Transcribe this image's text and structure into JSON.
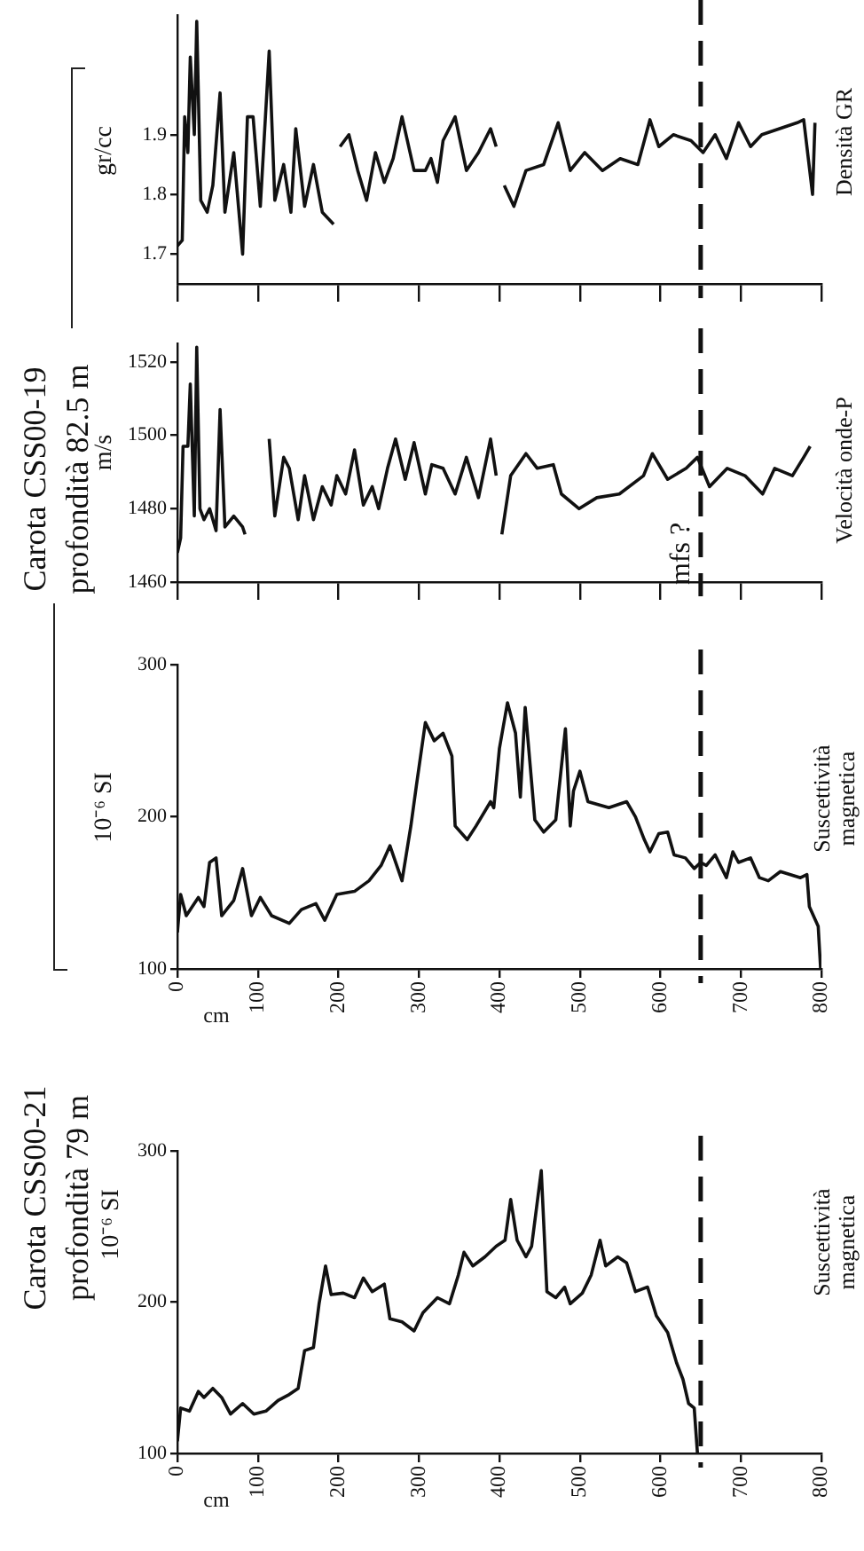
{
  "chart_data": [
    {
      "type": "line",
      "ylabel": "gr/cc",
      "annotations": [
        "Densità GR"
      ],
      "xlim": [
        0,
        800
      ],
      "xticks": [
        0,
        100,
        200,
        300,
        400,
        500,
        600,
        700,
        800
      ],
      "ylim": [
        1.65,
        2.1
      ],
      "yticks": [
        1.7,
        1.8,
        1.9
      ],
      "tick_labels": "y",
      "grid": false,
      "line_style": "solid",
      "x": [
        0,
        6,
        9,
        13,
        16,
        21,
        24,
        29,
        37,
        44,
        53,
        59,
        70,
        81,
        87,
        94,
        103,
        114,
        121,
        132,
        141,
        147,
        158,
        169,
        180,
        194,
        198,
        202,
        213,
        224,
        235,
        246,
        257,
        268,
        279,
        294,
        308,
        315,
        323,
        330,
        345,
        359,
        374,
        389,
        396,
        401,
        406,
        418,
        433,
        455,
        473,
        488,
        506,
        528,
        550,
        572,
        587,
        598,
        616,
        638,
        653,
        668,
        682,
        697,
        712,
        726,
        748,
        770,
        778,
        789,
        792
      ],
      "series": [
        {
          "color": "#111111",
          "values": [
            1.714,
            1.723,
            1.93,
            1.87,
            2.03,
            1.9,
            2.09,
            1.79,
            1.77,
            1.815,
            1.97,
            1.77,
            1.87,
            1.7,
            1.93,
            1.93,
            1.78,
            2.04,
            1.79,
            1.85,
            1.77,
            1.91,
            1.78,
            1.85,
            1.77,
            1.75,
            null,
            1.88,
            1.9,
            1.84,
            1.79,
            1.87,
            1.82,
            1.86,
            1.93,
            1.84,
            1.84,
            1.86,
            1.82,
            1.89,
            1.93,
            1.84,
            1.87,
            1.91,
            1.88,
            null,
            1.815,
            1.78,
            1.84,
            1.85,
            1.92,
            1.84,
            1.87,
            1.84,
            1.86,
            1.85,
            1.925,
            1.88,
            1.9,
            1.89,
            1.87,
            1.9,
            1.86,
            1.92,
            1.88,
            1.9,
            1.91,
            1.92,
            1.925,
            1.8,
            1.92
          ]
        }
      ],
      "ref_lines": [
        {
          "axis": "x",
          "value": 650,
          "line_style": "dashed"
        }
      ]
    },
    {
      "type": "line",
      "title": "Carota CSS00-19",
      "subtitle": "profondità 82.5 m",
      "ylabel": "m/s",
      "annotations": [
        "Velocità onde-P"
      ],
      "xlim": [
        0,
        800
      ],
      "xticks": [
        0,
        100,
        200,
        300,
        400,
        500,
        600,
        700,
        800
      ],
      "ylim": [
        1460,
        1525
      ],
      "yticks": [
        1460,
        1480,
        1500,
        1520
      ],
      "tick_labels": "y",
      "grid": false,
      "line_style": "solid",
      "x": [
        0,
        4,
        7,
        13,
        16,
        21,
        24,
        28,
        33,
        40,
        48,
        53,
        59,
        70,
        81,
        84,
        100,
        114,
        121,
        132,
        139,
        150,
        158,
        169,
        180,
        191,
        198,
        209,
        220,
        231,
        242,
        250,
        261,
        271,
        283,
        294,
        308,
        316,
        330,
        345,
        359,
        374,
        389,
        396,
        400,
        403,
        414,
        433,
        447,
        467,
        477,
        499,
        521,
        549,
        579,
        590,
        609,
        632,
        646,
        661,
        683,
        705,
        727,
        742,
        764,
        778,
        786
      ],
      "series": [
        {
          "color": "#111111",
          "values": [
            1468,
            1472,
            1497,
            1497,
            1514,
            1478,
            1524,
            1480,
            1477,
            1480,
            1474,
            1507,
            1475,
            1478,
            1475,
            1473,
            null,
            1499,
            1478,
            1494,
            1491,
            1477,
            1489,
            1477,
            1486,
            1481,
            1489,
            1484,
            1496,
            1481,
            1486,
            1480,
            1491,
            1499,
            1488,
            1498,
            1484,
            1492,
            1491,
            1484,
            1494,
            1483,
            1499,
            1489,
            null,
            1473,
            1489,
            1495,
            1491,
            1492,
            1484,
            1480,
            1483,
            1484,
            1489,
            1495,
            1488,
            1491,
            1494,
            1486,
            1491,
            1489,
            1484,
            1491,
            1489,
            1494,
            1497
          ]
        }
      ],
      "ref_lines": [
        {
          "axis": "x",
          "value": 650,
          "line_style": "dashed"
        }
      ]
    },
    {
      "type": "line",
      "ylabel": "10⁻⁶ SI",
      "xlabel": "cm",
      "annotations": [
        "Suscettività magnetica"
      ],
      "xlim": [
        0,
        800
      ],
      "xticks": [
        0,
        100,
        200,
        300,
        400,
        500,
        600,
        700,
        800
      ],
      "ylim": [
        100,
        300
      ],
      "yticks": [
        100,
        200,
        300
      ],
      "grid": false,
      "line_style": "solid",
      "x": [
        0,
        4,
        11,
        26,
        33,
        40,
        48,
        55,
        70,
        81,
        92,
        103,
        117,
        139,
        154,
        172,
        183,
        198,
        220,
        238,
        253,
        264,
        279,
        290,
        297,
        308,
        319,
        330,
        341,
        345,
        360,
        371,
        389,
        393,
        400,
        410,
        420,
        426,
        432,
        444,
        455,
        470,
        482,
        488,
        492,
        500,
        510,
        536,
        558,
        569,
        580,
        587,
        598,
        609,
        617,
        631,
        642,
        650,
        657,
        668,
        682,
        690,
        697,
        712,
        723,
        734,
        749,
        774,
        782,
        785,
        796,
        799
      ],
      "series": [
        {
          "color": "#111111",
          "values": [
            124,
            149,
            135,
            147,
            141,
            170,
            173,
            135,
            145,
            166,
            135,
            147,
            135,
            130,
            139,
            143,
            132,
            149,
            151,
            158,
            168,
            181,
            158,
            194,
            221,
            262,
            250,
            255,
            240,
            194,
            185,
            194,
            210,
            206,
            245,
            275,
            255,
            213,
            272,
            198,
            190,
            198,
            258,
            194,
            217,
            230,
            210,
            206,
            210,
            200,
            185,
            177,
            189,
            190,
            175,
            173,
            166,
            170,
            168,
            175,
            160,
            177,
            170,
            173,
            160,
            158,
            164,
            160,
            162,
            141,
            128,
            100
          ]
        }
      ],
      "ref_lines": [
        {
          "axis": "x",
          "value": 650,
          "label": "mfs ?",
          "line_style": "dashed"
        }
      ]
    },
    {
      "type": "line",
      "title": "Carota CSS00-21",
      "subtitle": "profondità 79 m",
      "ylabel": "10⁻⁶ SI",
      "xlabel": "cm",
      "annotations": [
        "Suscettività magnetica"
      ],
      "xlim": [
        0,
        800
      ],
      "xticks": [
        0,
        100,
        200,
        300,
        400,
        500,
        600,
        700,
        800
      ],
      "ylim": [
        100,
        300
      ],
      "yticks": [
        100,
        200,
        300
      ],
      "grid": false,
      "line_style": "solid",
      "x": [
        0,
        4,
        15,
        26,
        33,
        44,
        55,
        66,
        81,
        95,
        110,
        125,
        139,
        150,
        158,
        169,
        176,
        184,
        191,
        206,
        220,
        231,
        242,
        257,
        264,
        279,
        294,
        305,
        323,
        338,
        349,
        356,
        367,
        382,
        396,
        407,
        414,
        422,
        433,
        440,
        452,
        459,
        470,
        481,
        488,
        503,
        514,
        525,
        532,
        547,
        558,
        569,
        584,
        595,
        609,
        620,
        628,
        635,
        642,
        646
      ],
      "series": [
        {
          "color": "#111111",
          "values": [
            108,
            130,
            128,
            141,
            137,
            143,
            137,
            126,
            133,
            126,
            128,
            135,
            139,
            143,
            168,
            170,
            199,
            224,
            205,
            206,
            203,
            216,
            207,
            212,
            189,
            187,
            181,
            193,
            203,
            199,
            218,
            233,
            224,
            230,
            237,
            241,
            268,
            241,
            230,
            237,
            287,
            207,
            203,
            210,
            199,
            206,
            218,
            241,
            224,
            230,
            226,
            207,
            210,
            191,
            180,
            160,
            149,
            133,
            130,
            100
          ]
        }
      ],
      "ref_lines": [
        {
          "axis": "x",
          "value": 650,
          "line_style": "dashed"
        }
      ]
    }
  ]
}
